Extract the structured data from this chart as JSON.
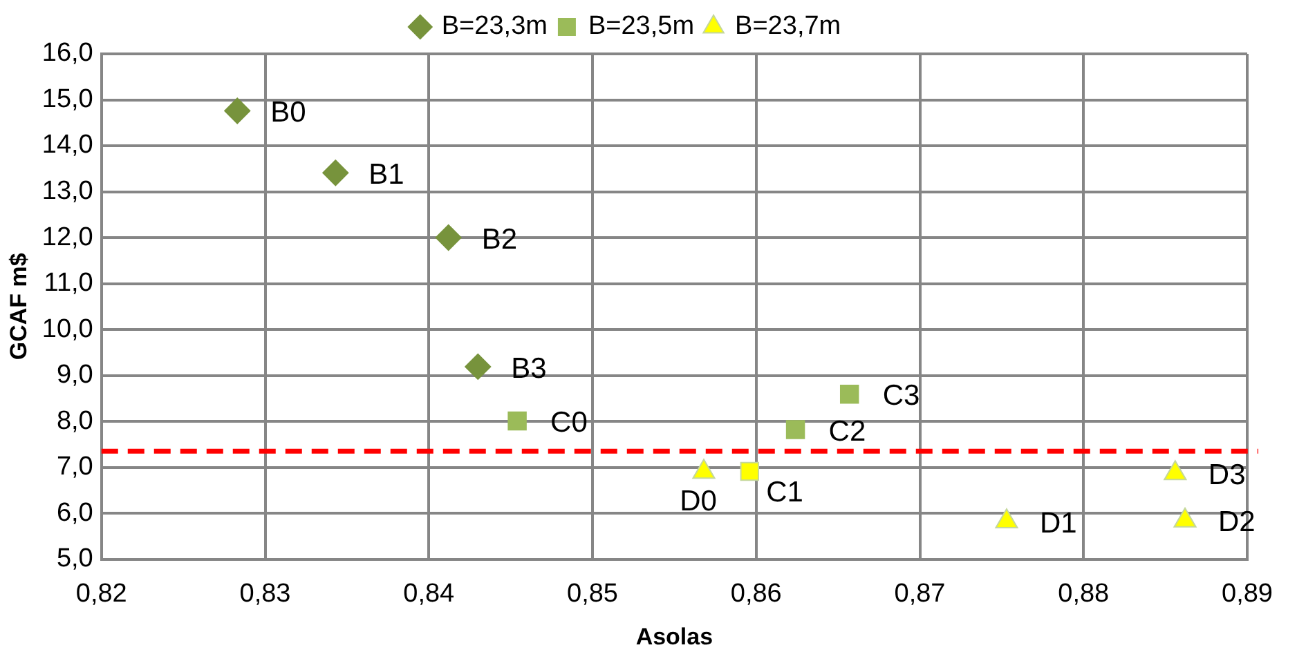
{
  "chart_data": {
    "type": "scatter",
    "xlabel": "Asolas",
    "ylabel": "GCAF m$",
    "series": [
      {
        "name": "B=23,3m",
        "color": "#77933c",
        "marker": "diamond",
        "x": [
          0.8283,
          0.8343,
          0.8412,
          0.843
        ],
        "values": [
          14.76,
          13.41,
          12.0,
          9.19
        ]
      },
      {
        "name": "B=23,5m",
        "color": "#9bbb59",
        "colors": [
          "#9bbb59",
          "#ffff00",
          "#9bbb59",
          "#9bbb59"
        ],
        "marker": "square",
        "x": [
          0.8454,
          0.8596,
          0.8624,
          0.8657
        ],
        "values": [
          8.01,
          6.91,
          7.82,
          8.59
        ]
      },
      {
        "name": "B=23,7m",
        "color": "#ffff00",
        "marker": "triangle",
        "x": [
          0.8568,
          0.8753,
          0.8862,
          0.8856
        ],
        "values": [
          6.9,
          5.82,
          5.84,
          6.87
        ]
      }
    ],
    "xlim": [
      0.82,
      0.89
    ],
    "xticks": [
      {
        "value": 0.82,
        "label": "0,82"
      },
      {
        "value": 0.83,
        "label": "0,83"
      },
      {
        "value": 0.84,
        "label": "0,84"
      },
      {
        "value": 0.85,
        "label": "0,85"
      },
      {
        "value": 0.86,
        "label": "0,86"
      },
      {
        "value": 0.87,
        "label": "0,87"
      },
      {
        "value": 0.88,
        "label": "0,88"
      },
      {
        "value": 0.89,
        "label": "0,89"
      }
    ],
    "ylim": [
      5,
      16
    ],
    "yticks": [
      {
        "value": 5,
        "label": "5,0"
      },
      {
        "value": 6,
        "label": "6,0"
      },
      {
        "value": 7,
        "label": "7,0"
      },
      {
        "value": 8,
        "label": "8,0"
      },
      {
        "value": 9,
        "label": "9,0"
      },
      {
        "value": 10,
        "label": "10,0"
      },
      {
        "value": 11,
        "label": "11,0"
      },
      {
        "value": 12,
        "label": "12,0"
      },
      {
        "value": 13,
        "label": "13,0"
      },
      {
        "value": 14,
        "label": "14,0"
      },
      {
        "value": 15,
        "label": "15,0"
      },
      {
        "value": 16,
        "label": "16,0"
      }
    ],
    "ref_lines": [
      {
        "axis": "y",
        "value": 7.35,
        "color": "#ff0000",
        "line_style": "dashed"
      }
    ],
    "annotations": [
      {
        "text": "B0",
        "x": 0.8283,
        "y": 14.76
      },
      {
        "text": "B1",
        "x": 0.8343,
        "y": 13.41
      },
      {
        "text": "B2",
        "x": 0.8412,
        "y": 12.0
      },
      {
        "text": "B3",
        "x": 0.843,
        "y": 9.19
      },
      {
        "text": "C0",
        "x": 0.8454,
        "y": 8.01
      },
      {
        "text": "C1",
        "x": 0.8596,
        "y": 6.91
      },
      {
        "text": "C2",
        "x": 0.8624,
        "y": 7.82
      },
      {
        "text": "C3",
        "x": 0.8657,
        "y": 8.59
      },
      {
        "text": "D0",
        "x": 0.8568,
        "y": 6.9
      },
      {
        "text": "D1",
        "x": 0.8753,
        "y": 5.82
      },
      {
        "text": "D2",
        "x": 0.8862,
        "y": 5.84
      },
      {
        "text": "D3",
        "x": 0.8856,
        "y": 6.87
      }
    ],
    "grid": true,
    "legend": "top"
  }
}
